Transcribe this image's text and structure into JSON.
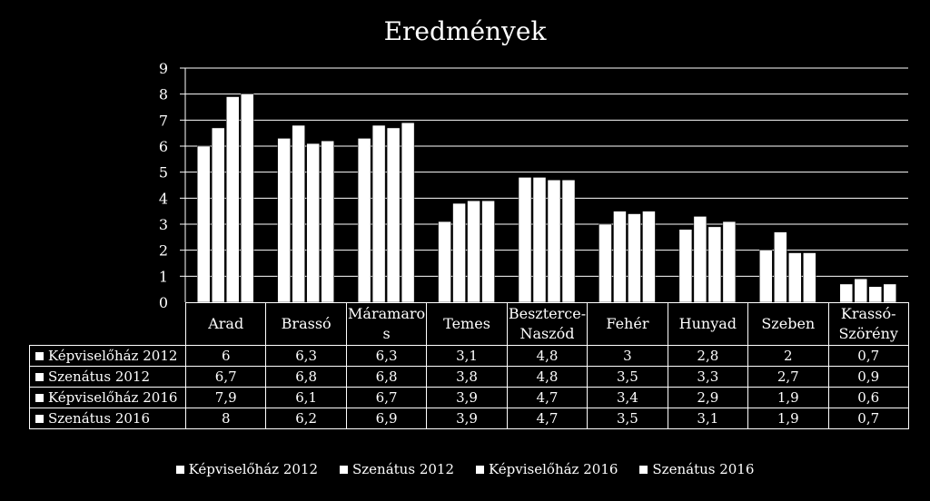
{
  "chart_data": {
    "type": "bar",
    "title": "Eredmények",
    "categories": [
      "Arad",
      "Brassó",
      "Máramaros",
      "Temes",
      "Beszterce-Naszód",
      "Fehér",
      "Hunyad",
      "Szeben",
      "Krassó-Szörény"
    ],
    "category_labels": [
      "Arad",
      "Brassó",
      "Máramaro s",
      "Temes",
      "Beszterce- Naszód",
      "Fehér",
      "Hunyad",
      "Szeben",
      "Krassó- Szörény"
    ],
    "series": [
      {
        "name": "Képviselőház 2012",
        "values": [
          6,
          6.3,
          6.3,
          3.1,
          4.8,
          3,
          2.8,
          2,
          0.7
        ],
        "labels": [
          "6",
          "6,3",
          "6,3",
          "3,1",
          "4,8",
          "3",
          "2,8",
          "2",
          "0,7"
        ]
      },
      {
        "name": "Szenátus 2012",
        "values": [
          6.7,
          6.8,
          6.8,
          3.8,
          4.8,
          3.5,
          3.3,
          2.7,
          0.9
        ],
        "labels": [
          "6,7",
          "6,8",
          "6,8",
          "3,8",
          "4,8",
          "3,5",
          "3,3",
          "2,7",
          "0,9"
        ]
      },
      {
        "name": "Képviselőház 2016",
        "values": [
          7.9,
          6.1,
          6.7,
          3.9,
          4.7,
          3.4,
          2.9,
          1.9,
          0.6
        ],
        "labels": [
          "7,9",
          "6,1",
          "6,7",
          "3,9",
          "4,7",
          "3,4",
          "2,9",
          "1,9",
          "0,6"
        ]
      },
      {
        "name": "Szenátus 2016",
        "values": [
          8,
          6.2,
          6.9,
          3.9,
          4.7,
          3.5,
          3.1,
          1.9,
          0.7
        ],
        "labels": [
          "8",
          "6,2",
          "6,9",
          "3,9",
          "4,7",
          "3,5",
          "3,1",
          "1,9",
          "0,7"
        ]
      }
    ],
    "ylim": [
      0,
      9
    ],
    "yticks": [
      "0",
      "1",
      "2",
      "3",
      "4",
      "5",
      "6",
      "7",
      "8",
      "9"
    ],
    "grid": true,
    "legend_position": "bottom",
    "data_table": true,
    "colors": {
      "background": "#000000",
      "bars": "#ffffff",
      "grid": "#ffffff",
      "text": "#ffffff"
    }
  }
}
